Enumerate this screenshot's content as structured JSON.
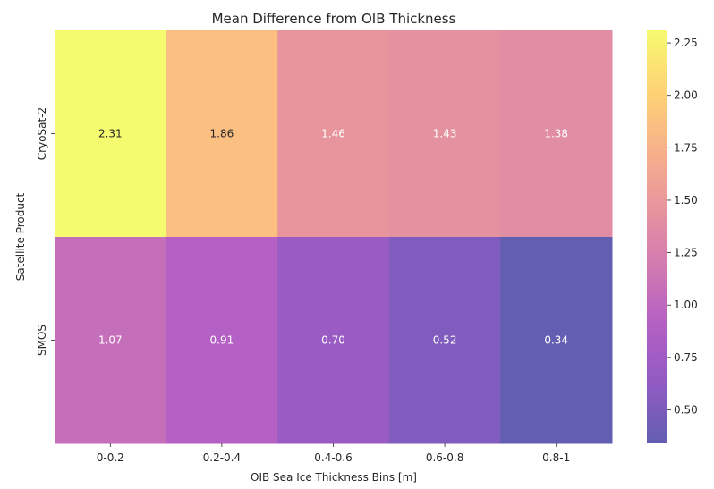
{
  "chart_data": {
    "type": "heatmap",
    "title": "Mean Difference from OIB Thickness",
    "xlabel": "OIB Sea Ice Thickness Bins [m]",
    "ylabel": "Satellite Product",
    "x_categories": [
      "0-0.2",
      "0.2-0.4",
      "0.4-0.6",
      "0.6-0.8",
      "0.8-1"
    ],
    "y_categories": [
      "CryoSat-2",
      "SMOS"
    ],
    "values": [
      [
        2.31,
        1.86,
        1.46,
        1.43,
        1.38
      ],
      [
        1.07,
        0.91,
        0.7,
        0.52,
        0.34
      ]
    ],
    "cell_labels": [
      [
        "2.31",
        "1.86",
        "1.46",
        "1.43",
        "1.38"
      ],
      [
        "1.07",
        "0.91",
        "0.70",
        "0.52",
        "0.34"
      ]
    ],
    "colorbar": {
      "range": [
        0.34,
        2.31
      ],
      "ticks": [
        0.5,
        0.75,
        1.0,
        1.25,
        1.5,
        1.75,
        2.0,
        2.25
      ],
      "tick_labels": [
        "0.50",
        "0.75",
        "1.00",
        "1.25",
        "1.50",
        "1.75",
        "2.00",
        "2.25"
      ],
      "colormap": "plasma",
      "alpha": 0.65
    },
    "grid": false,
    "legend": "colorbar-right"
  }
}
